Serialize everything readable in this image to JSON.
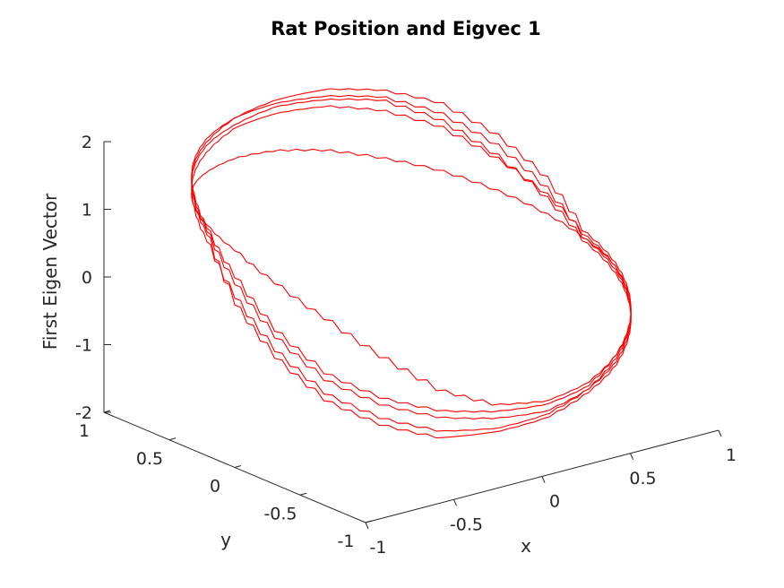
{
  "chart_data": {
    "type": "line",
    "projection": "3d",
    "title": "Rat Position and  Eigvec 1",
    "xlabel": "x",
    "ylabel": "y",
    "zlabel": "First Eigen Vector",
    "xlim": [
      -1,
      1
    ],
    "ylim": [
      -1,
      1
    ],
    "zlim": [
      -2,
      2
    ],
    "grid": false,
    "line_color": "#ff0000",
    "x_ticks": [
      {
        "value": -1,
        "label": "-1"
      },
      {
        "value": -0.5,
        "label": "-0.5"
      },
      {
        "value": 0,
        "label": "0"
      },
      {
        "value": 0.5,
        "label": "0.5"
      },
      {
        "value": 1,
        "label": "1"
      }
    ],
    "y_ticks": [
      {
        "value": -1,
        "label": "-1"
      },
      {
        "value": -0.5,
        "label": "-0.5"
      },
      {
        "value": 0,
        "label": "0"
      },
      {
        "value": 0.5,
        "label": "0.5"
      },
      {
        "value": 1,
        "label": "1"
      }
    ],
    "z_ticks": [
      {
        "value": -2,
        "label": "-2"
      },
      {
        "value": -1,
        "label": "-1"
      },
      {
        "value": 0,
        "label": "0"
      },
      {
        "value": 1,
        "label": "1"
      },
      {
        "value": 2,
        "label": "2"
      }
    ],
    "series": [
      {
        "points": [
          [
            1,
            0,
            0
          ],
          [
            0.966,
            0.259,
            0.2
          ],
          [
            0.866,
            0.5,
            0.42
          ],
          [
            0.707,
            0.707,
            0.65
          ],
          [
            0.5,
            0.866,
            0.85
          ],
          [
            0.259,
            0.966,
            1.05
          ],
          [
            0,
            1,
            1.2
          ],
          [
            -0.259,
            0.966,
            1.3
          ],
          [
            -0.5,
            0.866,
            1.35
          ],
          [
            -0.707,
            0.707,
            1.4
          ],
          [
            -0.866,
            0.5,
            1.4
          ],
          [
            -0.966,
            0.259,
            1.35
          ],
          [
            -1,
            0,
            1.2
          ],
          [
            -0.966,
            -0.259,
            0.9
          ],
          [
            -0.866,
            -0.5,
            0.5
          ],
          [
            -0.707,
            -0.707,
            0
          ],
          [
            -0.5,
            -0.866,
            -0.5
          ],
          [
            -0.259,
            -0.966,
            -0.8
          ],
          [
            0,
            -1,
            -0.9
          ],
          [
            0.259,
            -0.966,
            -0.85
          ],
          [
            0.5,
            -0.866,
            -0.7
          ],
          [
            0.707,
            -0.707,
            -0.55
          ],
          [
            0.866,
            -0.5,
            -0.4
          ],
          [
            0.966,
            -0.259,
            -0.2
          ],
          [
            1,
            0,
            0
          ]
        ]
      },
      {
        "points": [
          [
            1,
            0,
            0
          ],
          [
            0.966,
            0.259,
            0.6
          ],
          [
            0.866,
            0.5,
            1.1
          ],
          [
            0.707,
            0.707,
            1.5
          ],
          [
            0.5,
            0.866,
            1.75
          ],
          [
            0.259,
            0.966,
            1.85
          ],
          [
            0,
            1,
            1.9
          ],
          [
            -0.259,
            0.966,
            1.9
          ],
          [
            -0.5,
            0.866,
            1.8
          ],
          [
            -0.707,
            0.707,
            1.7
          ],
          [
            -0.866,
            0.5,
            1.55
          ],
          [
            -0.966,
            0.259,
            1.25
          ],
          [
            -1,
            0,
            0.7
          ],
          [
            -0.966,
            -0.259,
            0.1
          ],
          [
            -0.866,
            -0.5,
            -0.4
          ],
          [
            -0.707,
            -0.707,
            -0.7
          ],
          [
            -0.5,
            -0.866,
            -0.9
          ],
          [
            -0.259,
            -0.966,
            -1.0
          ],
          [
            0,
            -1,
            -1.05
          ],
          [
            0.259,
            -0.966,
            -0.95
          ],
          [
            0.5,
            -0.866,
            -0.75
          ],
          [
            0.707,
            -0.707,
            -0.55
          ],
          [
            0.866,
            -0.5,
            -0.35
          ],
          [
            0.966,
            -0.259,
            -0.15
          ],
          [
            1,
            0,
            0
          ]
        ]
      },
      {
        "points": [
          [
            1,
            0,
            0.05
          ],
          [
            0.966,
            0.259,
            0.5
          ],
          [
            0.866,
            0.5,
            0.9
          ],
          [
            0.707,
            0.707,
            1.3
          ],
          [
            0.5,
            0.866,
            1.55
          ],
          [
            0.259,
            0.966,
            1.7
          ],
          [
            0,
            1,
            1.75
          ],
          [
            -0.259,
            0.966,
            1.75
          ],
          [
            -0.5,
            0.866,
            1.65
          ],
          [
            -0.707,
            0.707,
            1.55
          ],
          [
            -0.866,
            0.5,
            1.4
          ],
          [
            -0.966,
            0.259,
            1.1
          ],
          [
            -1,
            0,
            0.5
          ],
          [
            -0.966,
            -0.259,
            -0.1
          ],
          [
            -0.866,
            -0.5,
            -0.6
          ],
          [
            -0.707,
            -0.707,
            -0.9
          ],
          [
            -0.5,
            -0.866,
            -1.1
          ],
          [
            -0.259,
            -0.966,
            -1.15
          ],
          [
            0,
            -1,
            -1.1
          ],
          [
            0.259,
            -0.966,
            -0.95
          ],
          [
            0.5,
            -0.866,
            -0.8
          ],
          [
            0.707,
            -0.707,
            -0.6
          ],
          [
            0.866,
            -0.5,
            -0.4
          ],
          [
            0.966,
            -0.259,
            -0.15
          ],
          [
            1,
            0,
            0.05
          ]
        ]
      },
      {
        "points": [
          [
            1,
            0,
            0.1
          ],
          [
            0.966,
            0.259,
            0.75
          ],
          [
            0.866,
            0.5,
            1.25
          ],
          [
            0.707,
            0.707,
            1.65
          ],
          [
            0.5,
            0.866,
            1.85
          ],
          [
            0.259,
            0.966,
            1.95
          ],
          [
            0,
            1,
            1.95
          ],
          [
            -0.259,
            0.966,
            1.9
          ],
          [
            -0.5,
            0.866,
            1.85
          ],
          [
            -0.707,
            0.707,
            1.75
          ],
          [
            -0.866,
            0.5,
            1.6
          ],
          [
            -0.966,
            0.259,
            1.3
          ],
          [
            -1,
            0,
            0.8
          ],
          [
            -0.966,
            -0.259,
            0.2
          ],
          [
            -0.866,
            -0.5,
            -0.3
          ],
          [
            -0.707,
            -0.707,
            -0.6
          ],
          [
            -0.5,
            -0.866,
            -0.8
          ],
          [
            -0.259,
            -0.966,
            -0.9
          ],
          [
            0,
            -1,
            -0.95
          ],
          [
            0.259,
            -0.966,
            -0.9
          ],
          [
            0.5,
            -0.866,
            -0.7
          ],
          [
            0.707,
            -0.707,
            -0.5
          ],
          [
            0.866,
            -0.5,
            -0.3
          ],
          [
            0.966,
            -0.259,
            -0.1
          ],
          [
            1,
            0,
            0.1
          ]
        ]
      },
      {
        "points": [
          [
            1,
            0,
            -0.05
          ],
          [
            0.966,
            0.259,
            0.45
          ],
          [
            0.866,
            0.5,
            0.95
          ],
          [
            0.707,
            0.707,
            1.4
          ],
          [
            0.5,
            0.866,
            1.7
          ],
          [
            0.259,
            0.966,
            1.8
          ],
          [
            0,
            1,
            1.85
          ],
          [
            -0.259,
            0.966,
            1.8
          ],
          [
            -0.5,
            0.866,
            1.75
          ],
          [
            -0.707,
            0.707,
            1.65
          ],
          [
            -0.866,
            0.5,
            1.5
          ],
          [
            -0.966,
            0.259,
            1.2
          ],
          [
            -1,
            0,
            0.4
          ],
          [
            -0.966,
            -0.259,
            -0.2
          ],
          [
            -0.866,
            -0.5,
            -0.7
          ],
          [
            -0.707,
            -0.707,
            -1.0
          ],
          [
            -0.5,
            -0.866,
            -1.2
          ],
          [
            -0.259,
            -0.966,
            -1.2
          ],
          [
            0,
            -1,
            -1.15
          ],
          [
            0.259,
            -0.966,
            -1.0
          ],
          [
            0.5,
            -0.866,
            -0.85
          ],
          [
            0.707,
            -0.707,
            -0.65
          ],
          [
            0.866,
            -0.5,
            -0.45
          ],
          [
            0.966,
            -0.259,
            -0.25
          ],
          [
            1,
            0,
            -0.05
          ]
        ]
      }
    ]
  }
}
